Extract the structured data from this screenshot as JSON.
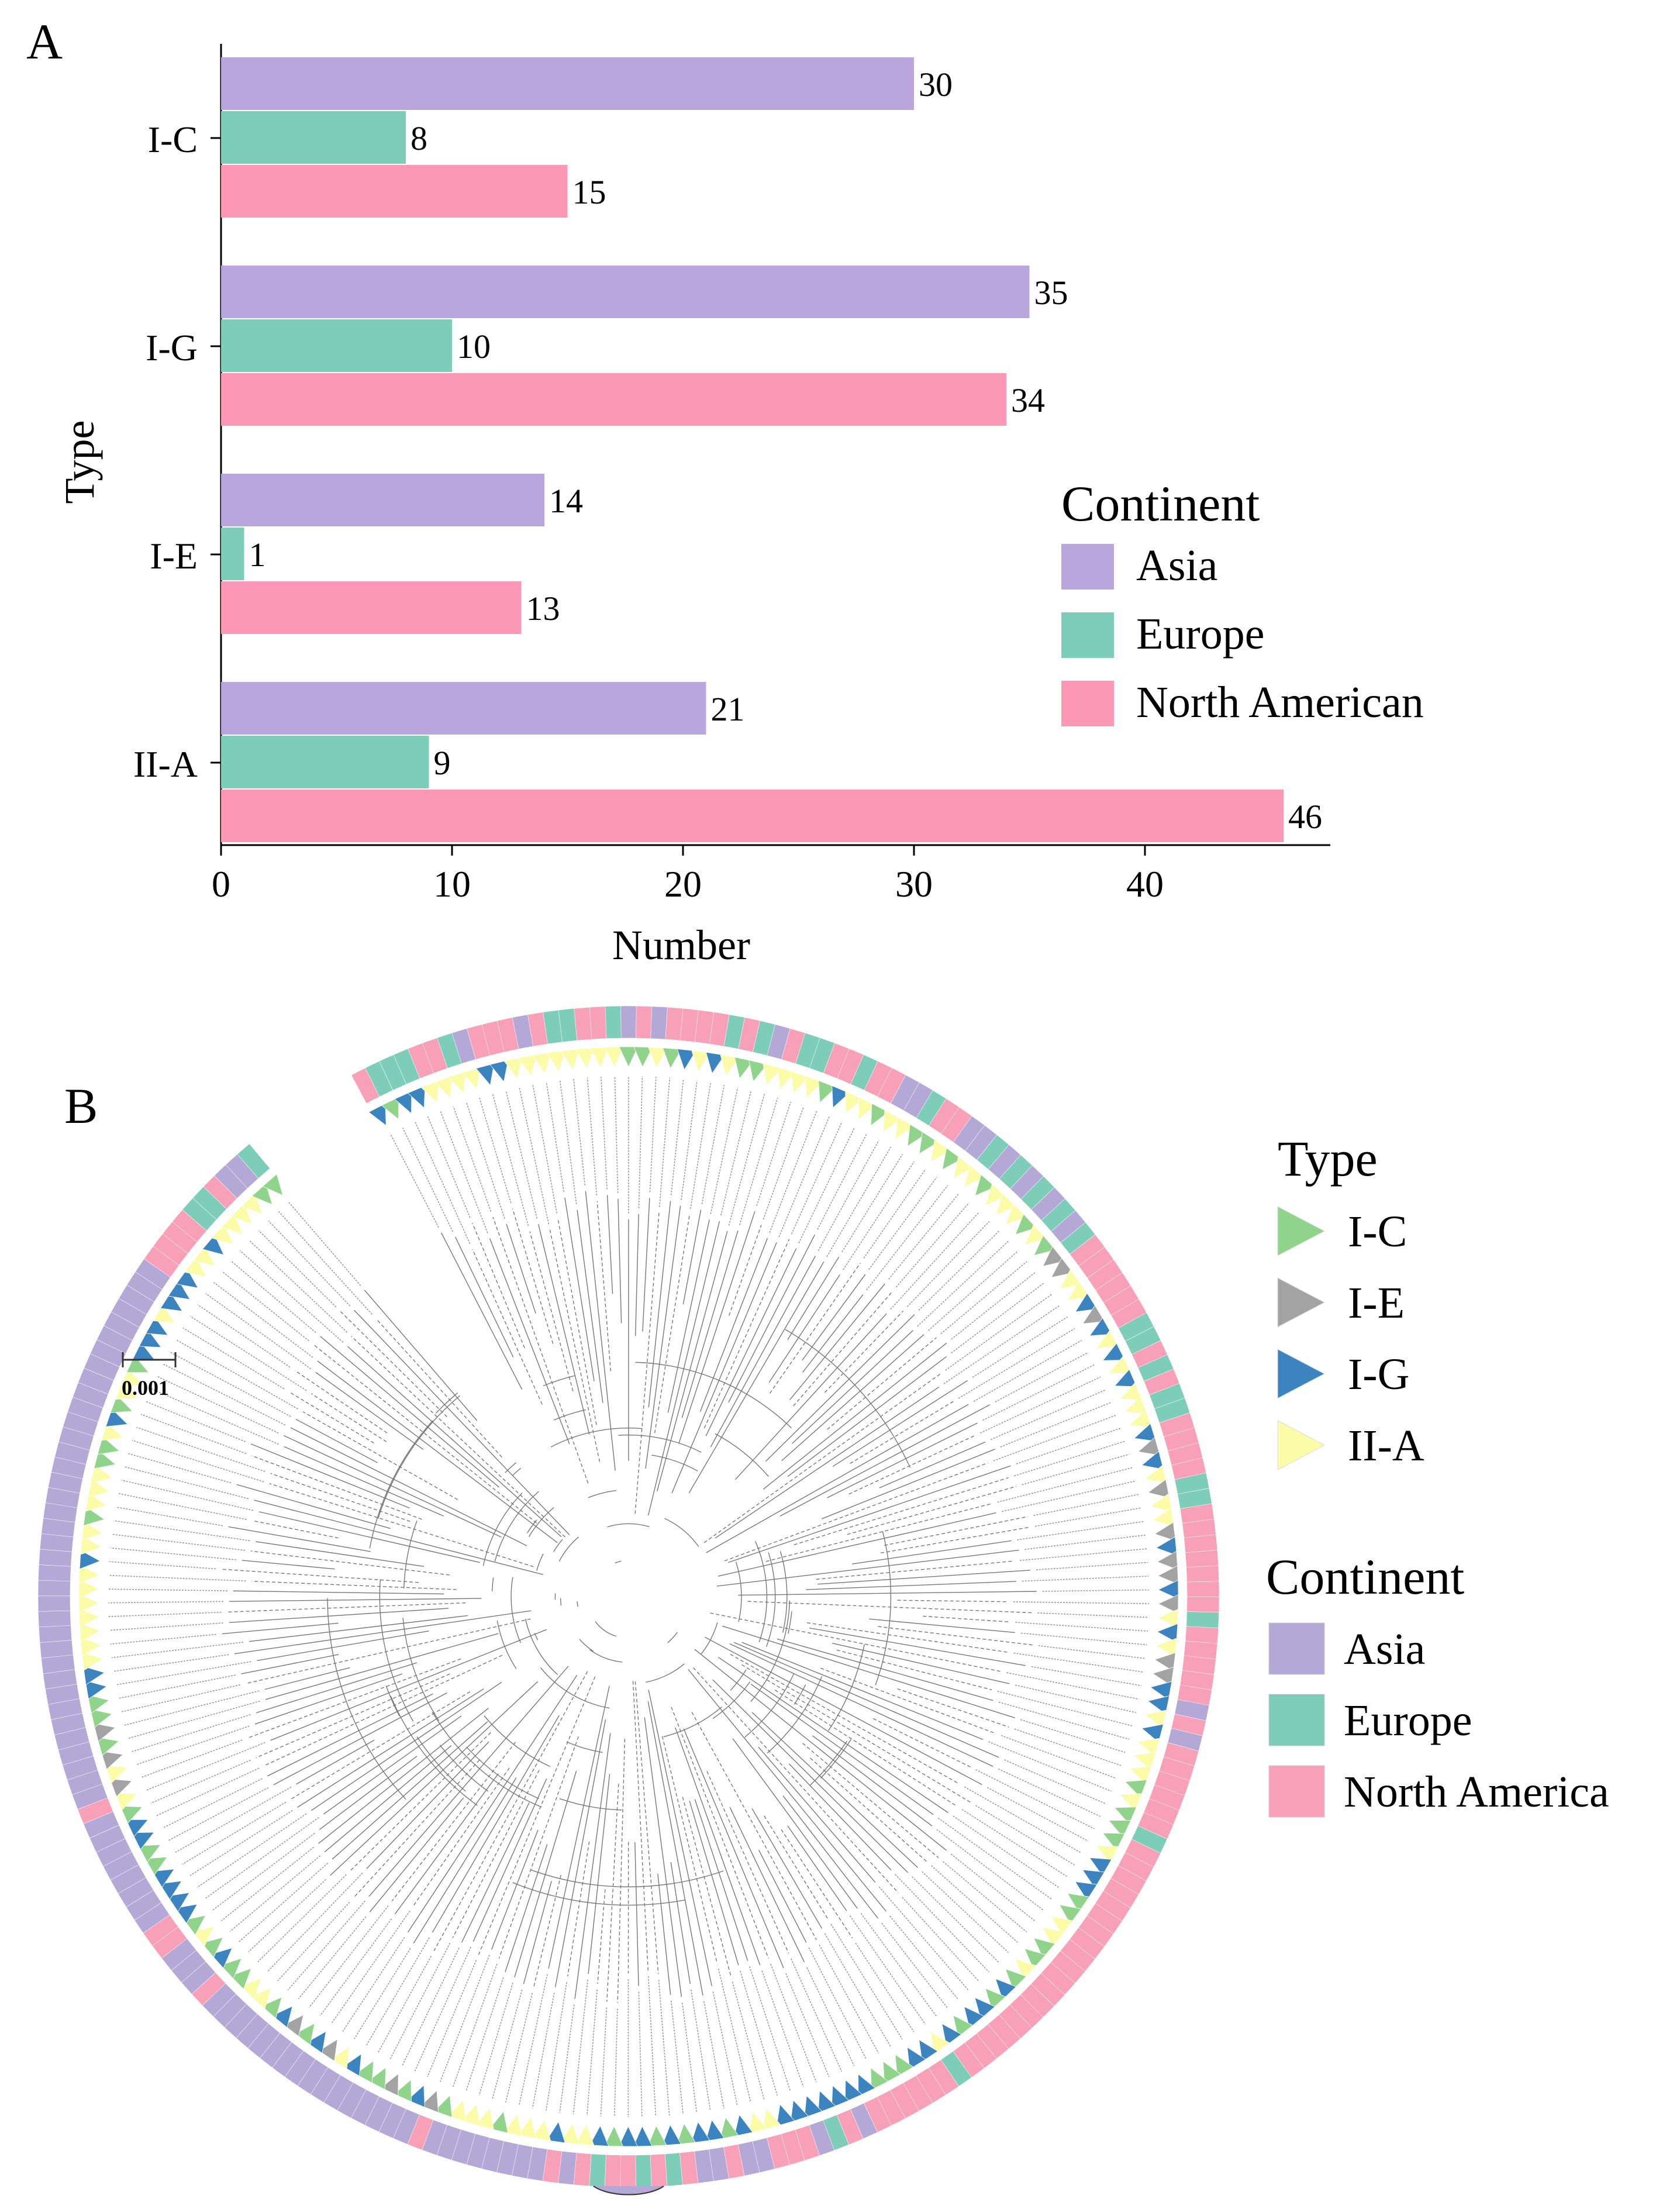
{
  "panel_a_letter": "A",
  "panel_b_letter": "B",
  "chart_data": [
    {
      "type": "bar",
      "orientation": "horizontal",
      "xlabel": "Number",
      "ylabel": "Type",
      "categories": [
        "I-C",
        "I-G",
        "I-E",
        "II-A"
      ],
      "series": [
        {
          "name": "Asia",
          "color": "#b9a6dc",
          "values": [
            30,
            35,
            14,
            21
          ]
        },
        {
          "name": "Europe",
          "color": "#7ecdb9",
          "values": [
            8,
            10,
            1,
            9
          ]
        },
        {
          "name": "North American",
          "color": "#fc97b6",
          "values": [
            15,
            34,
            13,
            46
          ]
        }
      ],
      "xlim": [
        0,
        48
      ],
      "xticks": [
        0,
        10,
        20,
        30,
        40
      ],
      "legend": {
        "title": "Continent",
        "position": "right"
      },
      "data_labels": true,
      "grid": false
    }
  ],
  "tree": {
    "scale_label": "0.001",
    "legend_type": {
      "title": "Type",
      "items": [
        {
          "label": "I-C",
          "color": "#8fd48a"
        },
        {
          "label": "I-E",
          "color": "#a3a3a3"
        },
        {
          "label": "I-G",
          "color": "#3b84c0"
        },
        {
          "label": "II-A",
          "color": "#fbfba8"
        }
      ]
    },
    "legend_continent": {
      "title": "Continent",
      "items": [
        {
          "label": "Asia",
          "color": "#b3a8d6"
        },
        {
          "label": "Europe",
          "color": "#7ecdb9"
        },
        {
          "label": "North America",
          "color": "#f7a0b8"
        }
      ]
    }
  }
}
